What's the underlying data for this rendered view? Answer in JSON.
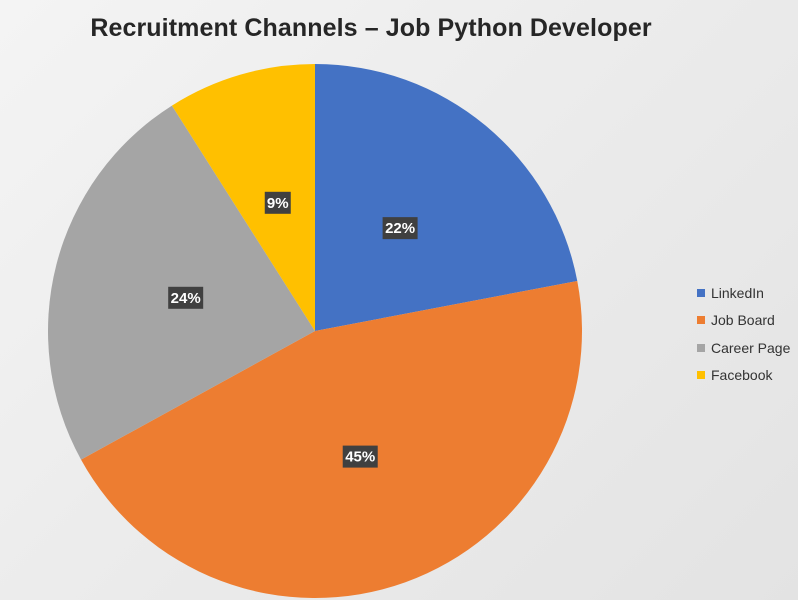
{
  "chart_data": {
    "type": "pie",
    "title": "Recruitment Channels – Job Python Developer",
    "categories": [
      "LinkedIn",
      "Job Board",
      "Career Page",
      "Facebook"
    ],
    "values": [
      22,
      45,
      24,
      9
    ],
    "value_labels": [
      "22%",
      "45%",
      "24%",
      "9%"
    ],
    "unit": "%",
    "colors": [
      "#4472c4",
      "#ed7d31",
      "#a5a5a5",
      "#ffc000"
    ],
    "start_angle_deg": 0,
    "direction": "clockwise",
    "legend_position": "right",
    "grid": false
  }
}
